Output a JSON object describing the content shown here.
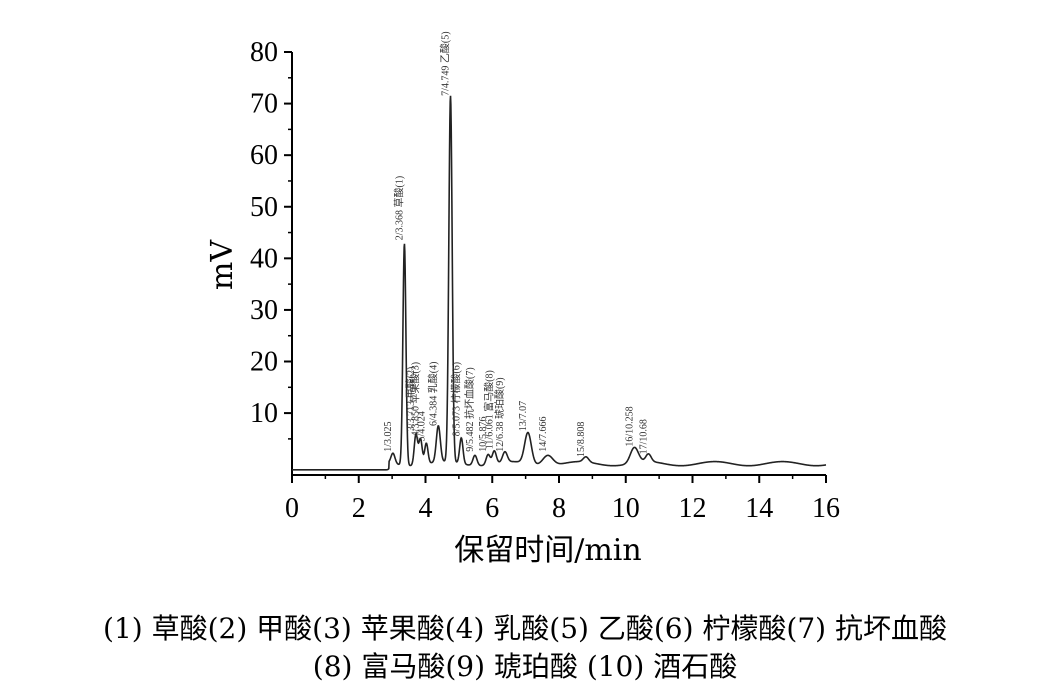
{
  "chart_data": {
    "type": "line",
    "title": "",
    "xlabel": "保留时间/min",
    "ylabel": "mV",
    "xlim": [
      0,
      16
    ],
    "ylim": [
      -2,
      80
    ],
    "x_ticks": [
      0,
      2,
      4,
      6,
      8,
      10,
      12,
      14,
      16
    ],
    "y_ticks": [
      10,
      20,
      30,
      40,
      50,
      60,
      70,
      80
    ],
    "baseline": -1,
    "grid": false,
    "series": [
      {
        "peaks": [
          {
            "x": 3.025,
            "height": 2,
            "width": 0.06,
            "label": "1/3.025"
          },
          {
            "x": 3.368,
            "height": 43,
            "width": 0.045,
            "label": "2/3.368 草酸(1)"
          },
          {
            "x": 3.713,
            "height": 6,
            "width": 0.05,
            "label": "3/3.713 甲酸(2)"
          },
          {
            "x": 3.85,
            "height": 5,
            "width": 0.05,
            "label": "4/3.850 苹果酸(3)"
          },
          {
            "x": 4.024,
            "height": 4,
            "width": 0.05,
            "label": "5/4.024"
          },
          {
            "x": 4.384,
            "height": 7,
            "width": 0.06,
            "label": "6/4.384 乳酸(4)"
          },
          {
            "x": 4.749,
            "height": 71,
            "width": 0.05,
            "label": "7/4.749 乙酸(5)"
          },
          {
            "x": 5.073,
            "height": 5,
            "width": 0.05,
            "label": "8/5.073 柠檬酸(6)"
          },
          {
            "x": 5.482,
            "height": 2,
            "width": 0.06,
            "label": "9/5.482 抗坏血酸(7)"
          },
          {
            "x": 5.876,
            "height": 2,
            "width": 0.06,
            "label": "10/5.876"
          },
          {
            "x": 6.061,
            "height": 2.5,
            "width": 0.06,
            "label": "11/6.061 富马酸(8)"
          },
          {
            "x": 6.38,
            "height": 2,
            "width": 0.07,
            "label": "12/6.38 琥珀酸(9)"
          },
          {
            "x": 7.07,
            "height": 6,
            "width": 0.1,
            "label": "13/7.07"
          },
          {
            "x": 7.666,
            "height": 2,
            "width": 0.15,
            "label": "14/7.666"
          },
          {
            "x": 8.808,
            "height": 1,
            "width": 0.08,
            "label": "15/8.808"
          },
          {
            "x": 10.258,
            "height": 3,
            "width": 0.12,
            "label": "16/10.258"
          },
          {
            "x": 10.68,
            "height": 1.5,
            "width": 0.08,
            "label": "17/10.68"
          }
        ]
      }
    ],
    "caption": [
      "(1) 草酸(2) 甲酸(3) 苹果酸(4) 乳酸(5) 乙酸(6) 柠檬酸(7) 抗坏血酸",
      "(8) 富马酸(9) 琥珀酸 (10) 酒石酸"
    ]
  }
}
